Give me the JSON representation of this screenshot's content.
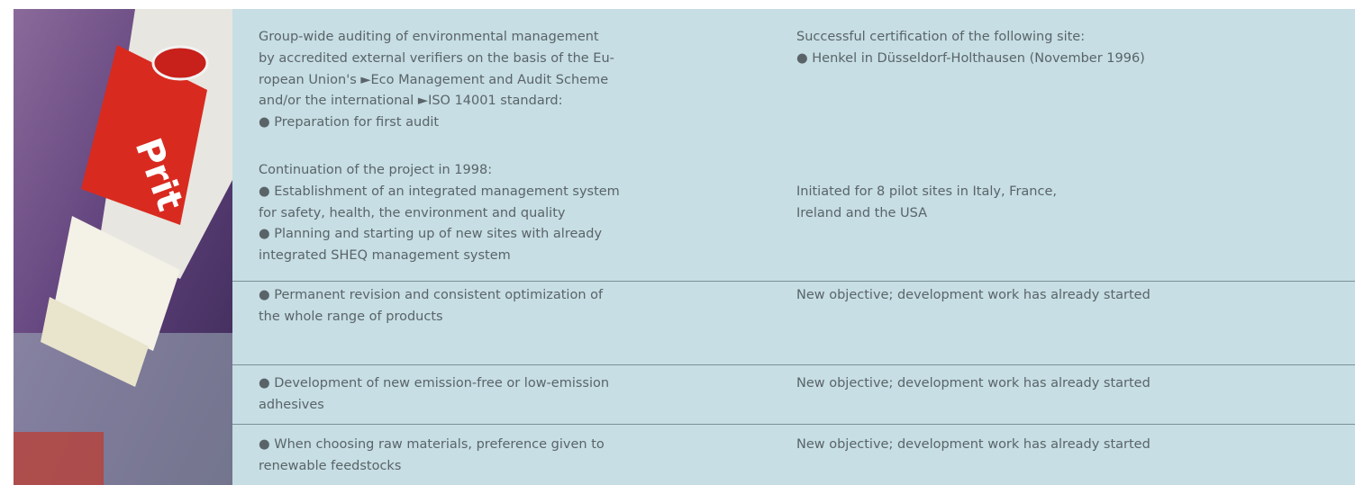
{
  "table": {
    "rows": [
      {
        "measure": [
          "Group-wide auditing of environmental management",
          "by accredited external verifiers on the basis of the Eu-",
          "ropean Union's ►Eco Management and Audit Scheme",
          "and/or the international ►ISO 14001 standard:",
          "● Preparation for first audit"
        ],
        "status": [
          "Successful certification of the following site:",
          "● Henkel in Düsseldorf-Holthausen (November 1996)"
        ]
      },
      {
        "measure": [
          "Continuation of the project in 1998:",
          "● Establishment of an integrated management system",
          "for safety, health, the environment and quality",
          "● Planning and starting up of new sites with already",
          "integrated SHEQ management system"
        ],
        "status": [
          "Initiated for 8 pilot sites in Italy, France,",
          "Ireland and the USA"
        ]
      },
      {
        "measure": [
          "● Permanent revision and consistent optimization of",
          "the whole range of products"
        ],
        "status": [
          "New objective; development work has already started"
        ]
      },
      {
        "measure": [
          "● Development of new emission-free or low-emission",
          "adhesives"
        ],
        "status": [
          "New objective; development work has already started"
        ]
      },
      {
        "measure": [
          "● When choosing raw materials, preference given to",
          "renewable feedstocks"
        ],
        "status": [
          "New objective; development work has already started"
        ]
      }
    ]
  }
}
